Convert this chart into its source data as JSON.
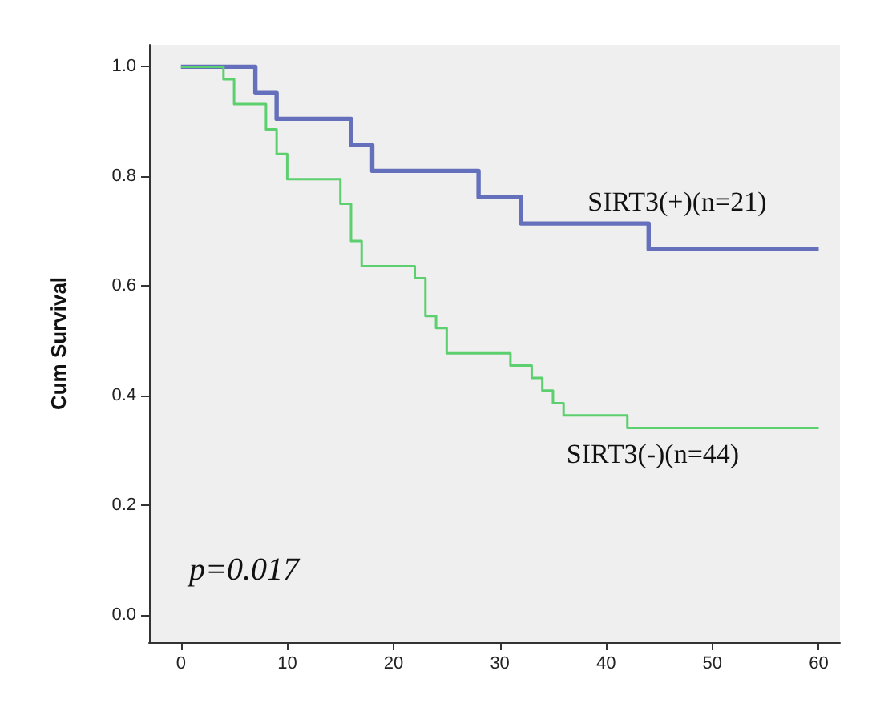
{
  "chart_data": {
    "type": "step",
    "ylabel": "Cum Survival",
    "xlim": [
      -3,
      62
    ],
    "xticks": [
      0,
      10,
      20,
      30,
      40,
      50,
      60
    ],
    "ylim": [
      -0.05,
      1.04
    ],
    "yticks": [
      {
        "value": 0,
        "label": "0.0"
      },
      {
        "value": 0.2,
        "label": "0.2"
      },
      {
        "value": 0.4,
        "label": "0.4"
      },
      {
        "value": 0.6,
        "label": "0.6"
      },
      {
        "value": 0.8,
        "label": "0.8"
      },
      {
        "value": 1,
        "label": "1.0"
      }
    ],
    "grid": false,
    "legend": false,
    "series": [
      {
        "name": "SIRT3(+)(n=21)",
        "color": "#6470bb",
        "x": [
          0,
          7,
          9,
          16,
          18,
          28,
          32,
          44,
          60
        ],
        "values": [
          1,
          0.952,
          0.905,
          0.857,
          0.81,
          0.762,
          0.714,
          0.667,
          0.667
        ]
      },
      {
        "name": "SIRT3(-)(n=44)",
        "color": "#5ccf6e",
        "x": [
          0,
          4,
          5,
          8,
          9,
          10,
          15,
          16,
          17,
          22,
          23,
          24,
          25,
          31,
          33,
          34,
          35,
          36,
          42,
          60
        ],
        "values": [
          1,
          0.977,
          0.932,
          0.886,
          0.841,
          0.795,
          0.75,
          0.682,
          0.636,
          0.614,
          0.545,
          0.523,
          0.477,
          0.455,
          0.432,
          0.409,
          0.386,
          0.364,
          0.341,
          0.341
        ]
      }
    ],
    "annotations": [
      "p=0.017"
    ]
  }
}
